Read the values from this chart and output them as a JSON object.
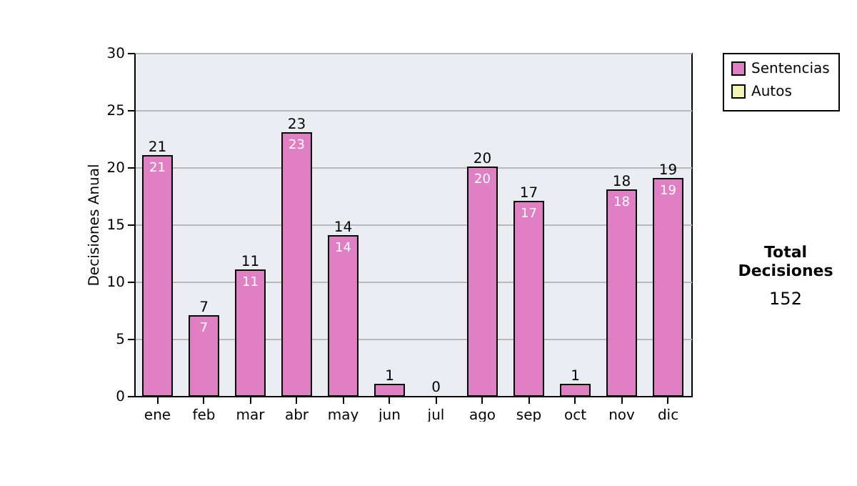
{
  "chart_data": {
    "type": "bar",
    "ylabel": "Decisiones Anual",
    "categories": [
      "ene",
      "feb",
      "mar",
      "abr",
      "may",
      "jun",
      "jul",
      "ago",
      "sep",
      "oct",
      "nov",
      "dic"
    ],
    "series": [
      {
        "name": "Sentencias",
        "color": "#e07fc4",
        "values": [
          21,
          7,
          11,
          23,
          14,
          1,
          0,
          20,
          17,
          1,
          18,
          19
        ],
        "value_labels": [
          "21",
          "7",
          "11",
          "23",
          "14",
          null,
          null,
          "20",
          "17",
          null,
          "18",
          "19"
        ]
      },
      {
        "name": "Autos",
        "color": "#f4f4b4",
        "values": [
          0,
          0,
          0,
          0,
          0,
          0,
          0,
          0,
          0,
          0,
          0,
          0
        ]
      }
    ],
    "stacked": true,
    "totals": [
      "21",
      "7",
      "11",
      "23",
      "14",
      "1",
      "0",
      "20",
      "17",
      "1",
      "18",
      "19"
    ],
    "ylim": [
      0,
      30
    ],
    "yticks": [
      0,
      5,
      10,
      15,
      20,
      25,
      30
    ],
    "grid": "y",
    "legend": "right",
    "annotations": [
      "Total Decisiones",
      "152"
    ]
  }
}
